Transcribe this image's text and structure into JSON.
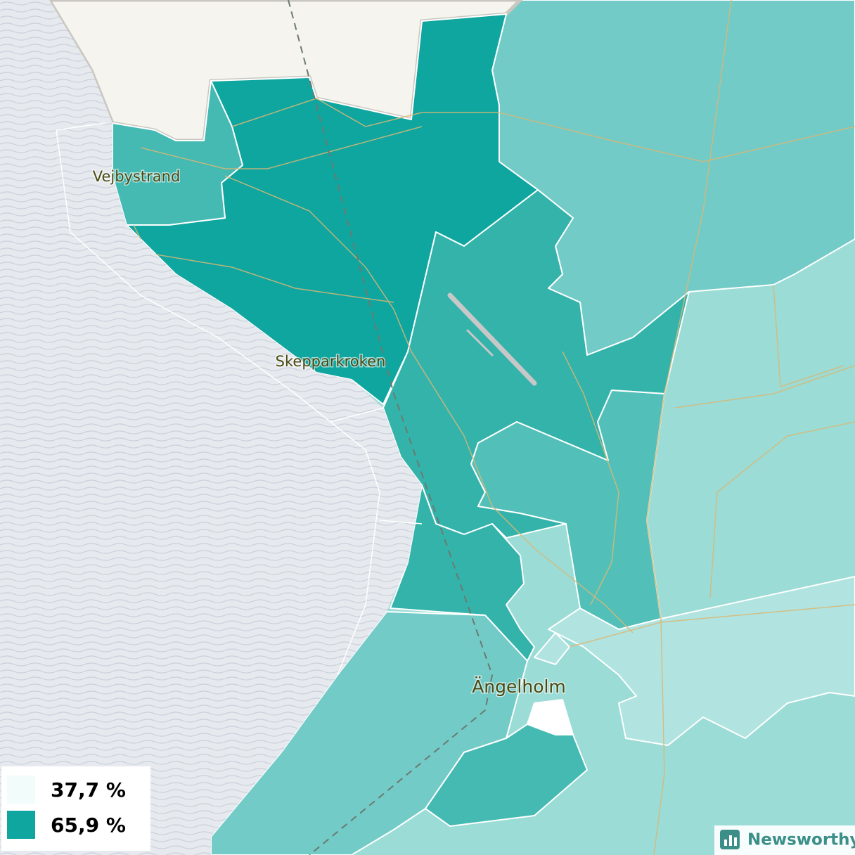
{
  "places": [
    "Vejbystrand",
    "Skepparkroken",
    "Ängelholm"
  ],
  "legend": [
    {
      "label": "37,7 %",
      "color": "#f2fcfb"
    },
    {
      "label": "65,9 %",
      "color": "#0fa6a0"
    }
  ],
  "brand": "Newsworthy"
}
